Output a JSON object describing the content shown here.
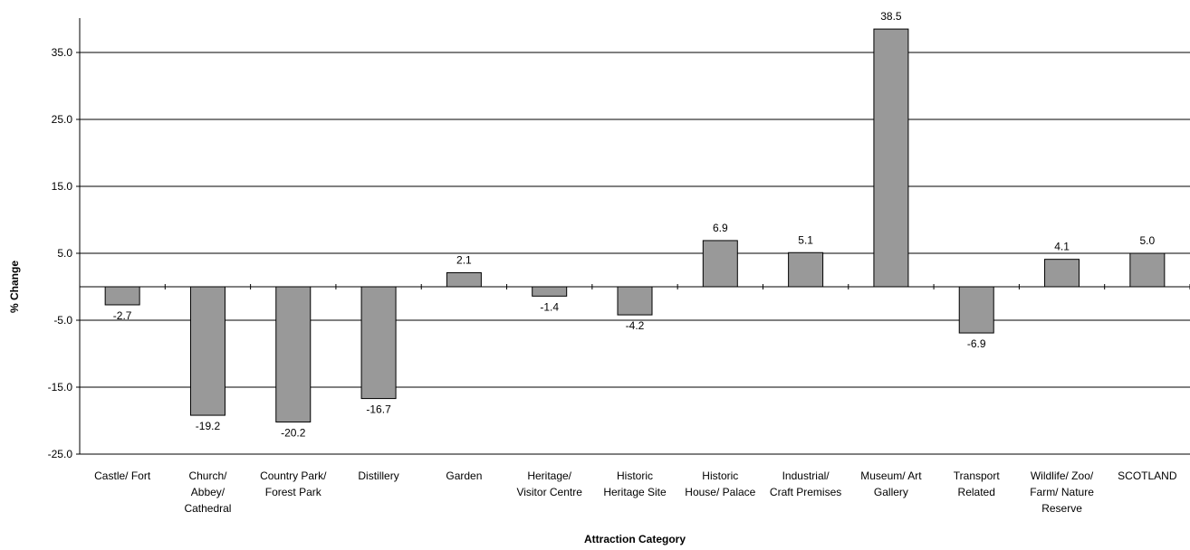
{
  "chart_data": {
    "type": "bar",
    "xlabel": "Attraction Category",
    "ylabel": "% Change",
    "ylim": [
      -25,
      42
    ],
    "yticks": [
      "35.0",
      "25.0",
      "15.0",
      "5.0",
      "-5.0",
      "-15.0",
      "-25.0"
    ],
    "ytick_values": [
      35,
      25,
      15,
      5,
      -5,
      -15,
      -25
    ],
    "grid": true,
    "legend": "none",
    "bar_color": "#999999",
    "categories": [
      [
        "Castle/ Fort"
      ],
      [
        "Church/",
        "Abbey/",
        "Cathedral"
      ],
      [
        "Country Park/",
        "Forest Park"
      ],
      [
        "Distillery"
      ],
      [
        "Garden"
      ],
      [
        "Heritage/",
        "Visitor Centre"
      ],
      [
        "Historic",
        "Heritage Site"
      ],
      [
        "Historic",
        "House/ Palace"
      ],
      [
        "Industrial/",
        "Craft Premises"
      ],
      [
        "Museum/ Art",
        "Gallery"
      ],
      [
        "Transport",
        "Related"
      ],
      [
        "Wildlife/ Zoo/",
        "Farm/ Nature",
        "Reserve"
      ],
      [
        "SCOTLAND"
      ]
    ],
    "values": [
      -2.7,
      -19.2,
      -20.2,
      -16.7,
      2.1,
      -1.4,
      -4.2,
      6.9,
      5.1,
      38.5,
      -6.9,
      4.1,
      5.0
    ],
    "value_labels": [
      "-2.7",
      "-19.2",
      "-20.2",
      "-16.7",
      "2.1",
      "-1.4",
      "-4.2",
      "6.9",
      "5.1",
      "38.5",
      "-6.9",
      "4.1",
      "5.0"
    ]
  }
}
